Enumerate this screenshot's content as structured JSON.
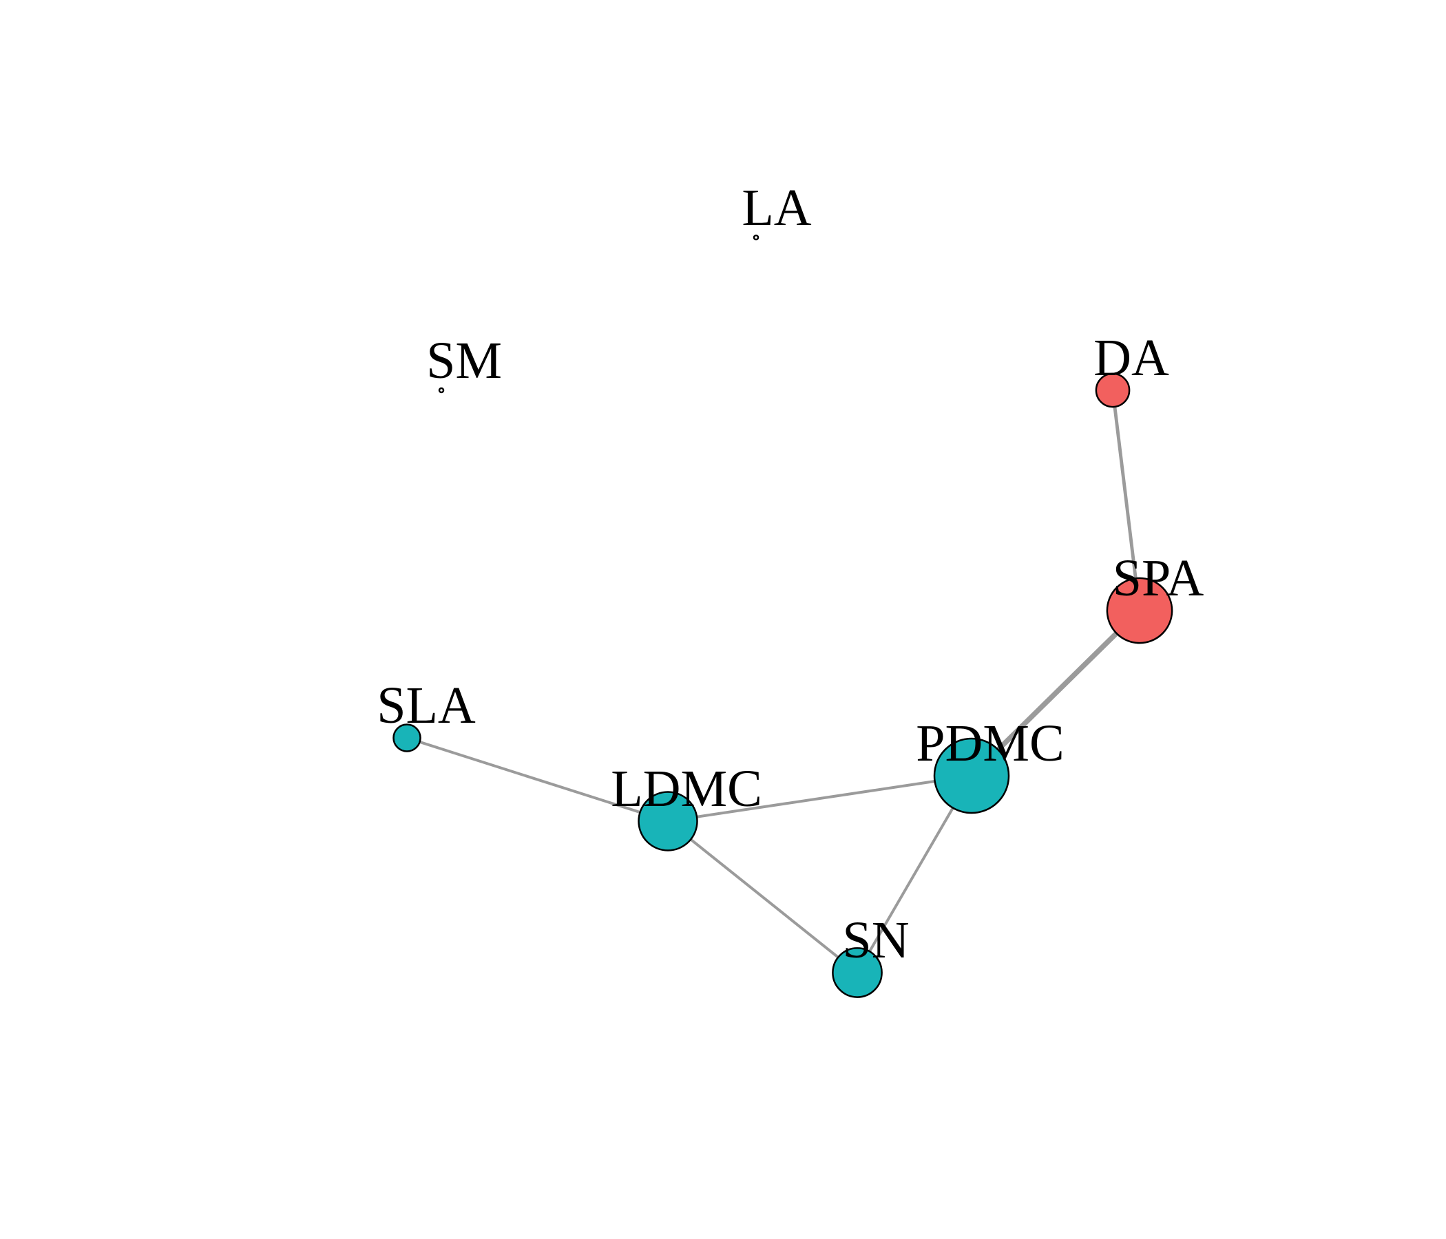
{
  "colors": {
    "edge": "#9b9b9b",
    "group_red": "#F2605E",
    "group_teal": "#18B4B8",
    "outline": "#000000"
  },
  "nodes": [
    {
      "id": "LA",
      "label": "LA",
      "group": "teal",
      "relative_size": 0.05
    },
    {
      "id": "SM",
      "label": "SM",
      "group": "teal",
      "relative_size": 0.05
    },
    {
      "id": "DA",
      "label": "DA",
      "group": "red",
      "relative_size": 0.35
    },
    {
      "id": "SPA",
      "label": "SPA",
      "group": "red",
      "relative_size": 0.85
    },
    {
      "id": "SLA",
      "label": "SLA",
      "group": "teal",
      "relative_size": 0.25
    },
    {
      "id": "PDMC",
      "label": "PDMC",
      "group": "teal",
      "relative_size": 1.0
    },
    {
      "id": "LDMC",
      "label": "LDMC",
      "group": "teal",
      "relative_size": 0.75
    },
    {
      "id": "SN",
      "label": "SN",
      "group": "teal",
      "relative_size": 0.6
    }
  ],
  "edges": [
    {
      "source": "DA",
      "target": "SPA",
      "relative_weight": 0.7
    },
    {
      "source": "SPA",
      "target": "PDMC",
      "relative_weight": 1.0
    },
    {
      "source": "SLA",
      "target": "LDMC",
      "relative_weight": 0.6
    },
    {
      "source": "LDMC",
      "target": "PDMC",
      "relative_weight": 0.6
    },
    {
      "source": "LDMC",
      "target": "SN",
      "relative_weight": 0.6
    },
    {
      "source": "PDMC",
      "target": "SN",
      "relative_weight": 0.6
    }
  ]
}
